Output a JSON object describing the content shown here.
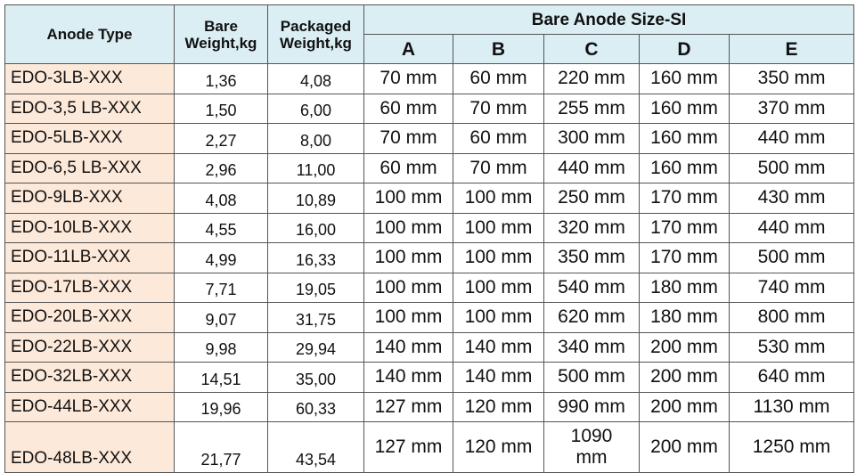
{
  "table": {
    "headers": {
      "anode_type": "Anode Type",
      "bare_weight": "Bare Weight,kg",
      "packaged_weight": "Packaged Weight,kg",
      "size_group": "Bare Anode Size-SI",
      "size_columns": [
        "A",
        "B",
        "C",
        "D",
        "E"
      ]
    },
    "rows": [
      [
        "EDO-3LB-XXX",
        "1,36",
        "4,08",
        "70 mm",
        "60 mm",
        "220 mm",
        "160 mm",
        "350 mm"
      ],
      [
        "EDO-3,5 LB-XXX",
        "1,50",
        "6,00",
        "60 mm",
        "70 mm",
        "255 mm",
        "160 mm",
        "370 mm"
      ],
      [
        "EDO-5LB-XXX",
        "2,27",
        "8,00",
        "70 mm",
        "60 mm",
        "300 mm",
        "160 mm",
        "440 mm"
      ],
      [
        "EDO-6,5 LB-XXX",
        "2,96",
        "11,00",
        "60 mm",
        "70 mm",
        "440 mm",
        "160 mm",
        "500 mm"
      ],
      [
        "EDO-9LB-XXX",
        "4,08",
        "10,89",
        "100 mm",
        "100 mm",
        "250 mm",
        "170 mm",
        "430 mm"
      ],
      [
        "EDO-10LB-XXX",
        "4,55",
        "16,00",
        "100 mm",
        "100 mm",
        "320 mm",
        "170 mm",
        "440 mm"
      ],
      [
        "EDO-11LB-XXX",
        "4,99",
        "16,33",
        "100 mm",
        "100 mm",
        "350 mm",
        "170 mm",
        "500 mm"
      ],
      [
        "EDO-17LB-XXX",
        "7,71",
        "19,05",
        "100 mm",
        "100 mm",
        "540 mm",
        "180 mm",
        "740 mm"
      ],
      [
        "EDO-20LB-XXX",
        "9,07",
        "31,75",
        "100 mm",
        "100 mm",
        "620 mm",
        "180 mm",
        "800 mm"
      ],
      [
        "EDO-22LB-XXX",
        "9,98",
        "29,94",
        "140 mm",
        "140 mm",
        "340 mm",
        "200 mm",
        "530 mm"
      ],
      [
        "EDO-32LB-XXX",
        "14,51",
        "35,00",
        "140 mm",
        "140 mm",
        "500 mm",
        "200 mm",
        "640 mm"
      ],
      [
        "EDO-44LB-XXX",
        "19,96",
        "60,33",
        "127 mm",
        "120 mm",
        "990 mm",
        "200 mm",
        "1130 mm"
      ],
      [
        "EDO-48LB-XXX",
        "21,77",
        "43,54",
        "127 mm",
        "120 mm",
        "1090\nmm",
        "200 mm",
        "1250 mm"
      ]
    ]
  }
}
